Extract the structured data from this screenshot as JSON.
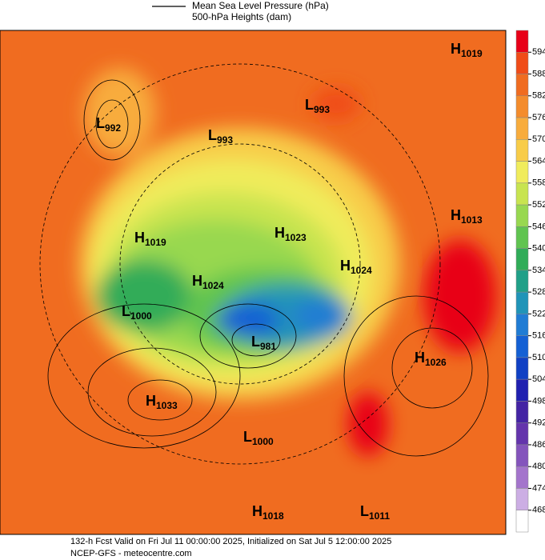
{
  "legend": {
    "line1": "Mean Sea Level Pressure (hPa)",
    "line2": "500-hPa Heights (dam)"
  },
  "colorbar": {
    "ticks": [
      594,
      588,
      582,
      576,
      570,
      564,
      558,
      552,
      546,
      540,
      534,
      528,
      522,
      516,
      510,
      504,
      498,
      492,
      486,
      480,
      474,
      468
    ],
    "colors": [
      "#e80018",
      "#f04c18",
      "#f06c20",
      "#f48c2c",
      "#f8ac3c",
      "#f8cc48",
      "#f0ec5c",
      "#c8e450",
      "#98d850",
      "#60c450",
      "#30ac58",
      "#20a088",
      "#2094b8",
      "#207cd4",
      "#1460d4",
      "#1040c4",
      "#2020b0",
      "#4424a4",
      "#6434ac",
      "#8454bc",
      "#a474cc",
      "#ccaee4",
      "#ffffff"
    ]
  },
  "centers": [
    {
      "letter": "H",
      "value": "1019"
    },
    {
      "letter": "L",
      "value": "992"
    },
    {
      "letter": "L",
      "value": "993"
    },
    {
      "letter": "L",
      "value": "993"
    },
    {
      "letter": "H",
      "value": "1013"
    },
    {
      "letter": "H",
      "value": "1019"
    },
    {
      "letter": "H",
      "value": "1023"
    },
    {
      "letter": "H",
      "value": "1024"
    },
    {
      "letter": "H",
      "value": "1024"
    },
    {
      "letter": "L",
      "value": "1000"
    },
    {
      "letter": "L",
      "value": "981"
    },
    {
      "letter": "H",
      "value": "1026"
    },
    {
      "letter": "H",
      "value": "1033"
    },
    {
      "letter": "L",
      "value": "1000"
    },
    {
      "letter": "H",
      "value": "1018"
    },
    {
      "letter": "L",
      "value": "1011"
    }
  ],
  "footer": {
    "line1": "132-h Fcst Valid on Fri Jul 11 00:00:00 2025, Initialized on Sat Jul  5 12:00:00 2025",
    "line2": "NCEP-GFS - meteocentre.com"
  }
}
